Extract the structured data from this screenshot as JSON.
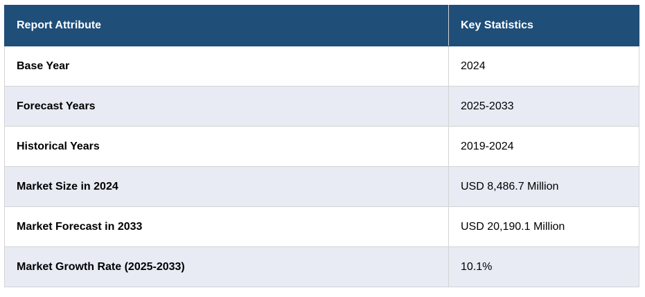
{
  "table": {
    "headers": [
      "Report Attribute",
      "Key Statistics"
    ],
    "rows": [
      {
        "attribute": "Base Year",
        "value": "2024"
      },
      {
        "attribute": "Forecast Years",
        "value": "2025-2033"
      },
      {
        "attribute": "Historical Years",
        "value": "2019-2024"
      },
      {
        "attribute": "Market Size in 2024",
        "value": "USD 8,486.7 Million"
      },
      {
        "attribute": "Market Forecast in 2033",
        "value": "USD 20,190.1 Million"
      },
      {
        "attribute": "Market Growth Rate (2025-2033)",
        "value": "10.1%"
      }
    ]
  },
  "colors": {
    "header_background": "#1f4e79",
    "header_text": "#ffffff",
    "row_alt_background": "#e8eaf4",
    "border": "#d4d4d4"
  }
}
